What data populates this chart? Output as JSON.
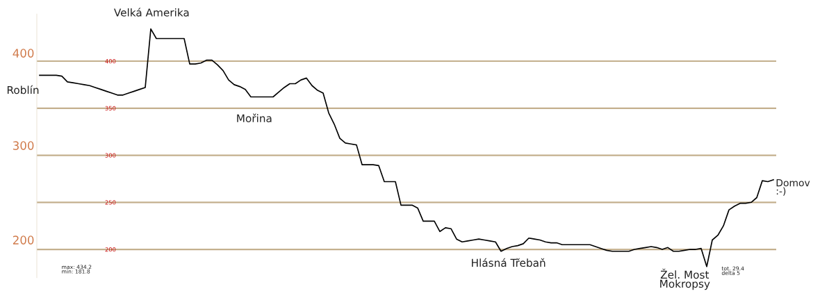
{
  "chart_data": {
    "type": "line",
    "categories": [
      null,
      null,
      null,
      null,
      null,
      null,
      null,
      null,
      null,
      null,
      null,
      null,
      null,
      null,
      null,
      null,
      null,
      null,
      null,
      null,
      null,
      null,
      null,
      null,
      null,
      null,
      null,
      null,
      null,
      null,
      null,
      null,
      null,
      null,
      null,
      null,
      null,
      null,
      null,
      null,
      null,
      null,
      null,
      null,
      null,
      null,
      null,
      null,
      null,
      null,
      null,
      null,
      null,
      null,
      null,
      null,
      null,
      null,
      null,
      null,
      null,
      null,
      null,
      null,
      null,
      null,
      null,
      null,
      null,
      null,
      null,
      null,
      null,
      null,
      null,
      null,
      null,
      null,
      null,
      null,
      null,
      null,
      null,
      null,
      null,
      null,
      null,
      null,
      null,
      null,
      null,
      null,
      null,
      null,
      null,
      null,
      null,
      null,
      null,
      null,
      null,
      null,
      null,
      null,
      null,
      null,
      null,
      null,
      null,
      null,
      null,
      null,
      null,
      null,
      null,
      null,
      null,
      null,
      null,
      null,
      null,
      null,
      null,
      null,
      null,
      null,
      null,
      null,
      null,
      null,
      null,
      null,
      null
    ],
    "series": [
      {
        "color": "#000000",
        "values": [
          385,
          385,
          385,
          385,
          384,
          378,
          377,
          376,
          375,
          374,
          372,
          370,
          368,
          366,
          364,
          364,
          366,
          368,
          370,
          372,
          434.2,
          424,
          424,
          424,
          424,
          424,
          424,
          397,
          397,
          398,
          401,
          401,
          396,
          390,
          380,
          375,
          373,
          370,
          362,
          362,
          362,
          362,
          362,
          367,
          372,
          376,
          376,
          380,
          382,
          374,
          369,
          366,
          345,
          333,
          318,
          313,
          312,
          311,
          290,
          290,
          290,
          289,
          272,
          272,
          272,
          247,
          247,
          247,
          244,
          230,
          230,
          230,
          219,
          223,
          222,
          211,
          208,
          209,
          210,
          211,
          210,
          209,
          208,
          198,
          201,
          203,
          204,
          206,
          212,
          211,
          210,
          208,
          207,
          207,
          205,
          205,
          205,
          205,
          205,
          205,
          203,
          201,
          199,
          198,
          198,
          198,
          198,
          200,
          201,
          202,
          203,
          202,
          200,
          202,
          198,
          198,
          199,
          200,
          200,
          201,
          181.8,
          210,
          215,
          225,
          242,
          246,
          249,
          249,
          250,
          255,
          273,
          272,
          274
        ]
      }
    ],
    "ylim": [
      170,
      450
    ],
    "yticks": [
      200,
      250,
      300,
      350,
      400
    ],
    "grid": "y",
    "marker": "none",
    "line_style": "solid",
    "tick_labels": "y",
    "annotations": [
      "400",
      "300",
      "200",
      "Velká Amerika",
      "Roblín",
      "Mořina",
      "Hlásná Třebaň",
      "Žel. Most\nMokropsy",
      "Domov\n:-)",
      "max: 434.2\nmin: 181.8",
      "tot. 29.4\ndelta 5"
    ]
  }
}
